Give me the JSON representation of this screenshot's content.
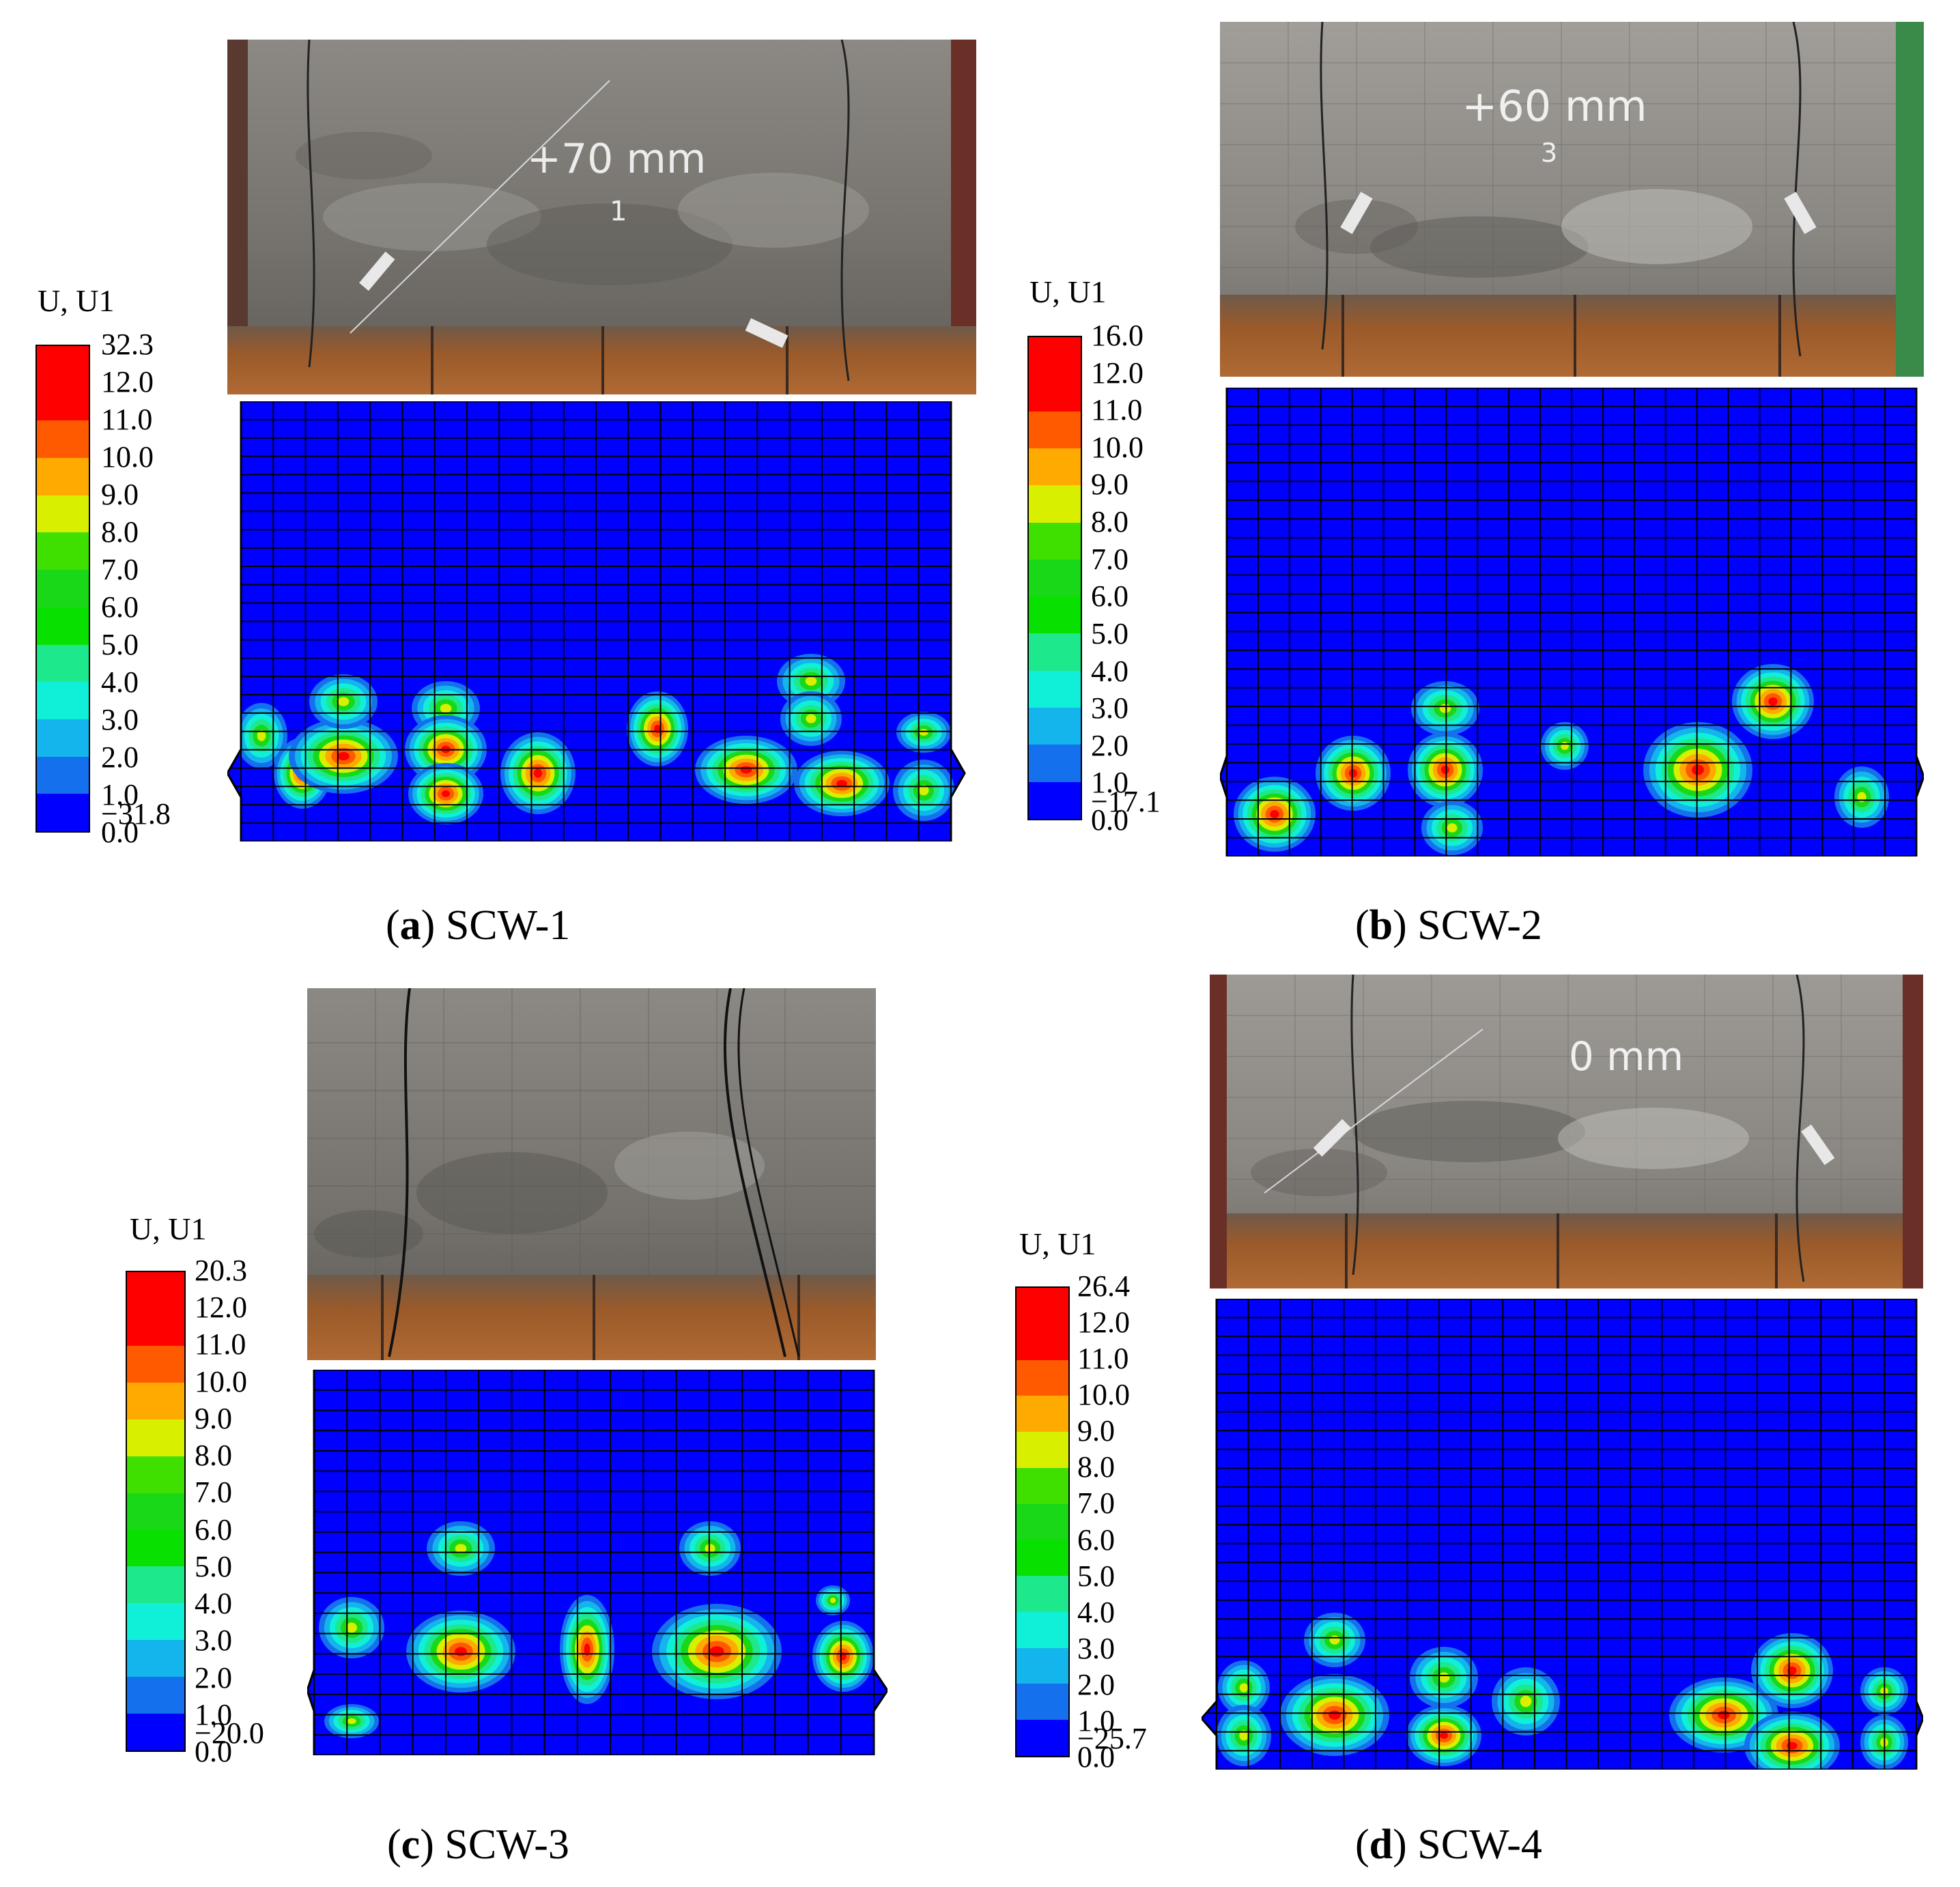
{
  "legend_colors": [
    "#ff0000",
    "#ff0000",
    "#ff5a00",
    "#ffaa00",
    "#d8f000",
    "#3fe000",
    "#18d818",
    "#08e000",
    "#1ee88c",
    "#10f0d8",
    "#14b4ec",
    "#1470ec",
    "#0000ff"
  ],
  "panels": [
    {
      "id": "a",
      "photo_label": "+70 mm",
      "photo_label_sub": "1",
      "legend": {
        "title": "U, U1",
        "values": [
          "32.3",
          "12.0",
          "11.0",
          "10.0",
          "9.0",
          "8.0",
          "7.0",
          "6.0",
          "5.0",
          "4.0",
          "3.0",
          "2.0",
          "1.0",
          "0.0",
          "−31.8"
        ]
      },
      "caption": {
        "letter": "a",
        "text": " SCW-1"
      }
    },
    {
      "id": "b",
      "photo_label": "+60 mm",
      "photo_label_sub": "3",
      "legend": {
        "title": "U, U1",
        "values": [
          "16.0",
          "12.0",
          "11.0",
          "10.0",
          "9.0",
          "8.0",
          "7.0",
          "6.0",
          "5.0",
          "4.0",
          "3.0",
          "2.0",
          "1.0",
          "0.0",
          "−17.1"
        ]
      },
      "caption": {
        "letter": "b",
        "text": " SCW-2"
      }
    },
    {
      "id": "c",
      "photo_label": "",
      "photo_label_sub": "",
      "legend": {
        "title": "U, U1",
        "values": [
          "20.3",
          "12.0",
          "11.0",
          "10.0",
          "9.0",
          "8.0",
          "7.0",
          "6.0",
          "5.0",
          "4.0",
          "3.0",
          "2.0",
          "1.0",
          "0.0",
          "−20.0"
        ]
      },
      "caption": {
        "letter": "c",
        "text": " SCW-3"
      }
    },
    {
      "id": "d",
      "photo_label": "0 mm",
      "photo_label_sub": "",
      "legend": {
        "title": "U, U1",
        "values": [
          "26.4",
          "12.0",
          "11.0",
          "10.0",
          "9.0",
          "8.0",
          "7.0",
          "6.0",
          "5.0",
          "4.0",
          "3.0",
          "2.0",
          "1.0",
          "0.0",
          "−25.7"
        ]
      },
      "caption": {
        "letter": "d",
        "text": " SCW-4"
      }
    }
  ]
}
